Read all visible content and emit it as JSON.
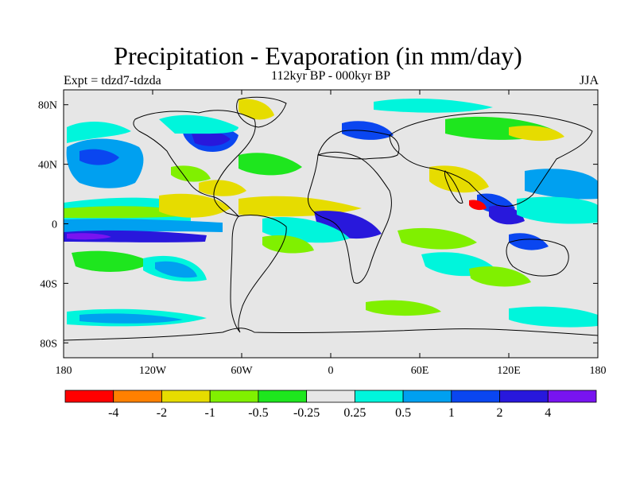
{
  "title": "Precipitation - Evaporation (in mm/day)",
  "subtitle": "112kyr BP - 000kyr BP",
  "experiment": "Expt = tdzd7-tdzda",
  "season": "JJA",
  "map": {
    "lon_range": [
      -180,
      180
    ],
    "lat_range": [
      -90,
      90
    ],
    "background_color": "#e6e6e6",
    "x_ticks": [
      {
        "lon": -180,
        "label": "180"
      },
      {
        "lon": -120,
        "label": "120W"
      },
      {
        "lon": -60,
        "label": "60W"
      },
      {
        "lon": 0,
        "label": "0"
      },
      {
        "lon": 60,
        "label": "60E"
      },
      {
        "lon": 120,
        "label": "120E"
      },
      {
        "lon": 180,
        "label": "180"
      }
    ],
    "y_ticks": [
      {
        "lat": 80,
        "label": "80N"
      },
      {
        "lat": 40,
        "label": "40N"
      },
      {
        "lat": 0,
        "label": "0"
      },
      {
        "lat": -40,
        "label": "40S"
      },
      {
        "lat": -80,
        "label": "80S"
      }
    ]
  },
  "colorbar": {
    "colors": [
      "#ff0000",
      "#ff8000",
      "#e6dc00",
      "#80f000",
      "#1ee61e",
      "#e6e6e6",
      "#00f5dc",
      "#00a0f0",
      "#0a46f0",
      "#2818dc",
      "#7814f0"
    ],
    "labels": [
      "-4",
      "-2",
      "-1",
      "-0.5",
      "-0.25",
      "0.25",
      "0.5",
      "1",
      "2",
      "4"
    ]
  }
}
